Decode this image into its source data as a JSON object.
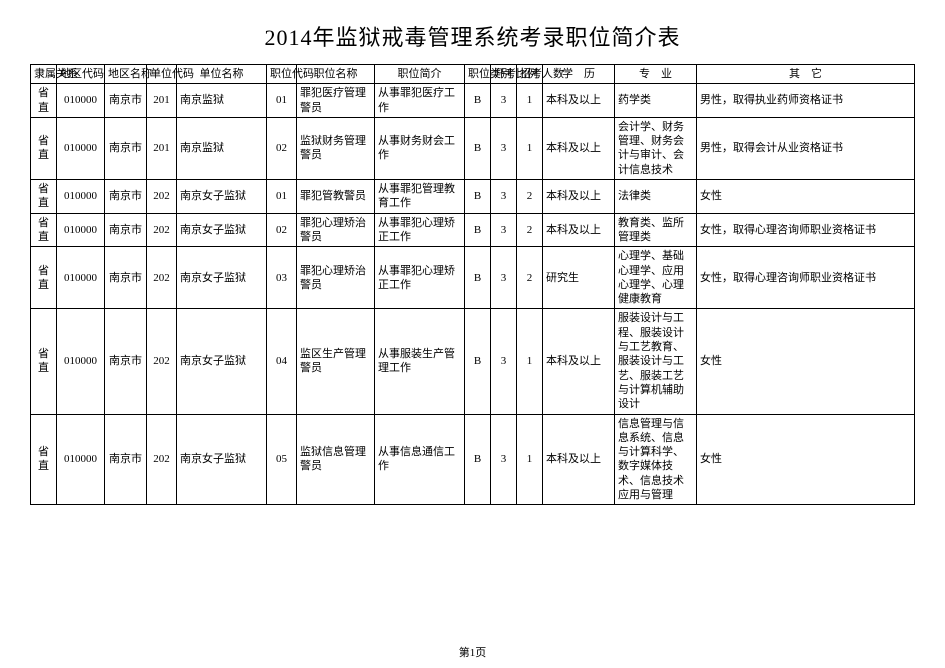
{
  "title": "2014年监狱戒毒管理系统考录职位简介表",
  "footer": "第1页",
  "headers": {
    "rel": "隶属关系",
    "areacode": "地区代码",
    "areaname": "地区名称",
    "unitcode": "单位代码",
    "unitname": "单位名称",
    "poscode": "职位代码",
    "posname": "职位名称",
    "posdesc": "职位简介",
    "postype": "职位类别",
    "ratio": "开考比例",
    "count": "招考人数",
    "edu": "学　历",
    "major": "专　业",
    "other": "其　它"
  },
  "rows": [
    {
      "rel": "省直",
      "areacode": "010000",
      "areaname": "南京市",
      "unitcode": "201",
      "unitname": "南京监狱",
      "poscode": "01",
      "posname": "罪犯医疗管理警员",
      "posdesc": "从事罪犯医疗工作",
      "postype": "B",
      "ratio": "3",
      "count": "1",
      "edu": "本科及以上",
      "major": "药学类",
      "other": "男性，取得执业药师资格证书"
    },
    {
      "rel": "省直",
      "areacode": "010000",
      "areaname": "南京市",
      "unitcode": "201",
      "unitname": "南京监狱",
      "poscode": "02",
      "posname": "监狱财务管理警员",
      "posdesc": "从事财务财会工作",
      "postype": "B",
      "ratio": "3",
      "count": "1",
      "edu": "本科及以上",
      "major": "会计学、财务管理、财务会计与审计、会计信息技术",
      "other": "男性，取得会计从业资格证书"
    },
    {
      "rel": "省直",
      "areacode": "010000",
      "areaname": "南京市",
      "unitcode": "202",
      "unitname": "南京女子监狱",
      "poscode": "01",
      "posname": "罪犯管教警员",
      "posdesc": "从事罪犯管理教育工作",
      "postype": "B",
      "ratio": "3",
      "count": "2",
      "edu": "本科及以上",
      "major": "法律类",
      "other": "女性"
    },
    {
      "rel": "省直",
      "areacode": "010000",
      "areaname": "南京市",
      "unitcode": "202",
      "unitname": "南京女子监狱",
      "poscode": "02",
      "posname": "罪犯心理矫治警员",
      "posdesc": "从事罪犯心理矫正工作",
      "postype": "B",
      "ratio": "3",
      "count": "2",
      "edu": "本科及以上",
      "major": "教育类、监所管理类",
      "other": "女性，取得心理咨询师职业资格证书"
    },
    {
      "rel": "省直",
      "areacode": "010000",
      "areaname": "南京市",
      "unitcode": "202",
      "unitname": "南京女子监狱",
      "poscode": "03",
      "posname": "罪犯心理矫治警员",
      "posdesc": "从事罪犯心理矫正工作",
      "postype": "B",
      "ratio": "3",
      "count": "2",
      "edu": "研究生",
      "major": "心理学、基础心理学、应用心理学、心理健康教育",
      "other": "女性，取得心理咨询师职业资格证书"
    },
    {
      "rel": "省直",
      "areacode": "010000",
      "areaname": "南京市",
      "unitcode": "202",
      "unitname": "南京女子监狱",
      "poscode": "04",
      "posname": "监区生产管理警员",
      "posdesc": "从事服装生产管理工作",
      "postype": "B",
      "ratio": "3",
      "count": "1",
      "edu": "本科及以上",
      "major": "服装设计与工程、服装设计与工艺教育、服装设计与工艺、服装工艺与计算机辅助设计",
      "other": "女性"
    },
    {
      "rel": "省直",
      "areacode": "010000",
      "areaname": "南京市",
      "unitcode": "202",
      "unitname": "南京女子监狱",
      "poscode": "05",
      "posname": "监狱信息管理警员",
      "posdesc": "从事信息通信工作",
      "postype": "B",
      "ratio": "3",
      "count": "1",
      "edu": "本科及以上",
      "major": "信息管理与信息系统、信息与计算科学、数字媒体技术、信息技术应用与管理",
      "other": "女性"
    }
  ]
}
